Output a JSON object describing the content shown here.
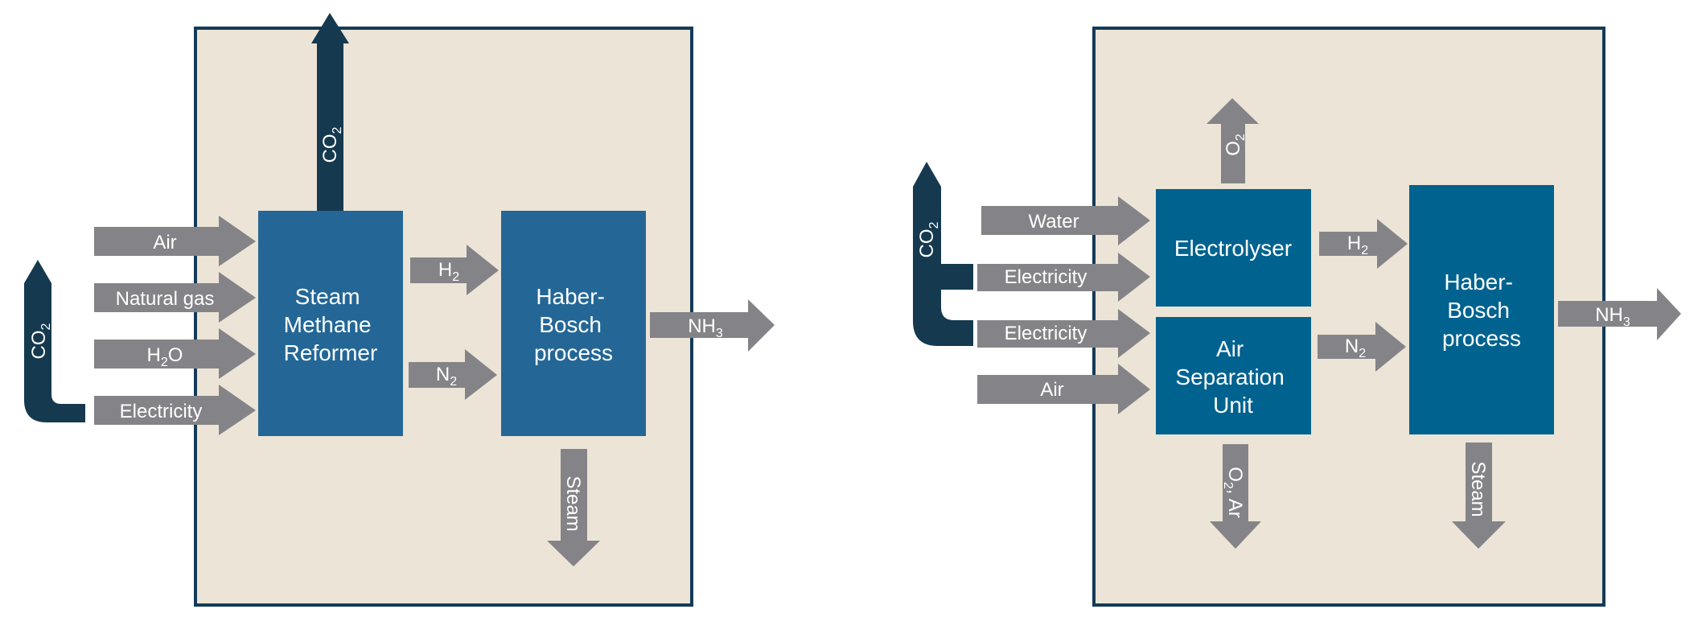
{
  "colors": {
    "background": "#ffffff",
    "panel_fill": "#ece4d6",
    "panel_border": "#143a58",
    "process_box_left": "#246797",
    "process_box_right": "#00628f",
    "flow_arrow": "#848488",
    "co2_arrow": "#15394f",
    "text": "#ffffff"
  },
  "left": {
    "box_smr": [
      "Steam",
      "Methane",
      "Reformer"
    ],
    "box_hb": [
      "Haber-",
      "Bosch",
      "process"
    ],
    "in_air": "Air",
    "in_natural_gas": "Natural gas",
    "in_h2o": {
      "main": "H",
      "sub": "2",
      "tail": "O"
    },
    "in_electricity": "Electricity",
    "out_co2": {
      "main": "CO",
      "sub": "2"
    },
    "mid_h2": {
      "main": "H",
      "sub": "2"
    },
    "mid_n2": {
      "main": "N",
      "sub": "2"
    },
    "out_nh3": {
      "main": "NH",
      "sub": "3"
    },
    "out_steam": "Steam",
    "co2_return": {
      "main": "CO",
      "sub": "2"
    }
  },
  "right": {
    "box_electrolyser": "Electrolyser",
    "box_asu": [
      "Air",
      "Separation",
      "Unit"
    ],
    "box_hb": [
      "Haber-",
      "Bosch",
      "process"
    ],
    "in_water": "Water",
    "in_electricity_1": "Electricity",
    "in_electricity_2": "Electricity",
    "in_air": "Air",
    "out_o2": {
      "main": "O",
      "sub": "2"
    },
    "mid_h2": {
      "main": "H",
      "sub": "2"
    },
    "mid_n2": {
      "main": "N",
      "sub": "2"
    },
    "out_nh3": {
      "main": "NH",
      "sub": "3"
    },
    "out_o2_ar": {
      "main": "O",
      "sub": "2",
      "tail": ", Ar"
    },
    "out_steam": "Steam",
    "co2_return": {
      "main": "CO",
      "sub": "2"
    }
  }
}
